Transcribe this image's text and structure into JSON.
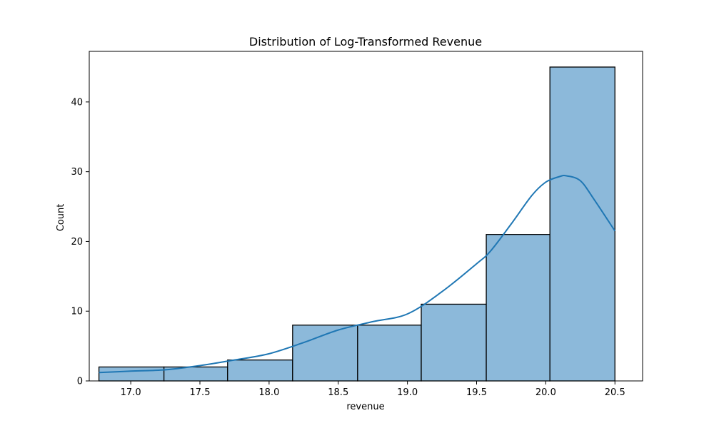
{
  "chart_data": {
    "type": "bar",
    "title": "Distribution of Log-Transformed Revenue",
    "xlabel": "revenue",
    "ylabel": "Count",
    "xlim": [
      16.7,
      20.7
    ],
    "ylim": [
      0,
      47.25
    ],
    "xticks": [
      17.0,
      17.5,
      18.0,
      18.5,
      19.0,
      19.5,
      20.0,
      20.5
    ],
    "xtick_labels": [
      "17.0",
      "17.5",
      "18.0",
      "18.5",
      "19.0",
      "19.5",
      "20.0",
      "20.5"
    ],
    "yticks": [
      0,
      10,
      20,
      30,
      40
    ],
    "ytick_labels": [
      "0",
      "10",
      "20",
      "30",
      "40"
    ],
    "bins": [
      {
        "x0": 16.77,
        "x1": 17.24,
        "count": 2
      },
      {
        "x0": 17.24,
        "x1": 17.7,
        "count": 2
      },
      {
        "x0": 17.7,
        "x1": 18.17,
        "count": 3
      },
      {
        "x0": 18.17,
        "x1": 18.64,
        "count": 8
      },
      {
        "x0": 18.64,
        "x1": 19.1,
        "count": 8
      },
      {
        "x0": 19.1,
        "x1": 19.57,
        "count": 11
      },
      {
        "x0": 19.57,
        "x1": 20.03,
        "count": 21
      },
      {
        "x0": 20.03,
        "x1": 20.5,
        "count": 45
      }
    ],
    "kde": {
      "x": [
        16.77,
        17.0,
        17.25,
        17.5,
        17.75,
        18.0,
        18.25,
        18.5,
        18.75,
        19.0,
        19.25,
        19.5,
        19.6,
        19.75,
        19.9,
        20.0,
        20.1,
        20.15,
        20.25,
        20.35,
        20.5
      ],
      "y": [
        1.2,
        1.4,
        1.6,
        2.2,
        3.0,
        3.9,
        5.5,
        7.3,
        8.5,
        9.6,
        12.8,
        16.8,
        18.6,
        22.5,
        26.6,
        28.5,
        29.3,
        29.4,
        28.7,
        26.0,
        21.5
      ]
    },
    "grid": false,
    "colors": {
      "bar_fill": "#8cb9da",
      "bar_edge": "#000000",
      "kde_line": "#1f77b4"
    }
  }
}
